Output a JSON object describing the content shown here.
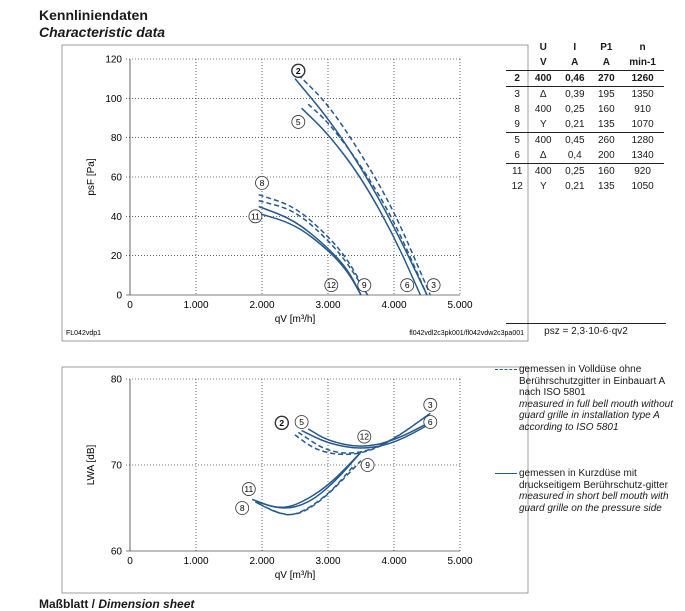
{
  "header": {
    "title": "Kennliniendaten",
    "subtitle": "Characteristic data"
  },
  "footer": {
    "title_de": "Maßblatt",
    "title_sep": " / ",
    "title_en": "Dimension sheet"
  },
  "colors": {
    "curve": "#27598c",
    "grid": "#000000",
    "text": "#1a1a1a"
  },
  "table": {
    "headers": [
      "U",
      "I",
      "P1",
      "n"
    ],
    "units": [
      "V",
      "A",
      "A",
      "min-1"
    ],
    "rows": [
      {
        "id": "2",
        "u": "400",
        "i": "0,46",
        "p": "270",
        "n": "1260",
        "bold": true
      },
      {
        "id": "3",
        "u": "Δ",
        "i": "0,39",
        "p": "195",
        "n": "1350"
      },
      {
        "id": "8",
        "u": "400",
        "i": "0,25",
        "p": "160",
        "n": "910"
      },
      {
        "id": "9",
        "u": "Y",
        "i": "0,21",
        "p": "135",
        "n": "1070"
      },
      {
        "id": "5",
        "u": "400",
        "i": "0,45",
        "p": "260",
        "n": "1280"
      },
      {
        "id": "6",
        "u": "Δ",
        "i": "0,4",
        "p": "200",
        "n": "1340"
      },
      {
        "id": "11",
        "u": "400",
        "i": "0,25",
        "p": "160",
        "n": "920"
      },
      {
        "id": "12",
        "u": "Y",
        "i": "0,21",
        "p": "135",
        "n": "1050"
      }
    ]
  },
  "formula": "psz = 2,3·10-6·qv2",
  "legend": {
    "dashed": {
      "de": "gemessen in Volldüse ohne Berührschutzgitter in Einbauart A nach ISO 5801",
      "en": "measured in full bell mouth without guard grille in installation type A according to ISO 5801"
    },
    "solid": {
      "de": "gemessen in Kurzdüse mit druckseitigem Berührschutz-gitter",
      "en": "measured in short bell mouth with guard grille on the pressure side"
    }
  },
  "chart_data": [
    {
      "type": "line",
      "xlabel": "qV [m³/h]",
      "ylabel": "psF [Pa]",
      "xlim": [
        0,
        5000
      ],
      "ylim": [
        0,
        120
      ],
      "xticks": [
        "0",
        "1.000",
        "2.000",
        "3.000",
        "4.000",
        "5.000"
      ],
      "yticks": [
        "0",
        "20",
        "40",
        "60",
        "80",
        "100",
        "120"
      ],
      "grid": true,
      "note_left": "FL042vdp1",
      "note_right": "fl042vdl2c3pk001/fl042vdw2c3pa001",
      "series": [
        {
          "name": "2",
          "style": "solid",
          "x": [
            2500,
            3000,
            3500,
            4000,
            4500
          ],
          "y": [
            110,
            90,
            65,
            35,
            0
          ]
        },
        {
          "name": "3",
          "style": "dashed",
          "x": [
            2550,
            3000,
            3500,
            4000,
            4550
          ],
          "y": [
            112,
            97,
            72,
            43,
            0
          ]
        },
        {
          "name": "5",
          "style": "solid",
          "x": [
            2600,
            3000,
            3500,
            4000,
            4400
          ],
          "y": [
            95,
            82,
            60,
            30,
            0
          ]
        },
        {
          "name": "6",
          "style": "dashed",
          "x": [
            2700,
            3000,
            3500,
            4000,
            4500
          ],
          "y": [
            97,
            88,
            66,
            38,
            0
          ]
        },
        {
          "name": "8",
          "style": "dashed",
          "x": [
            1950,
            2500,
            3000,
            3300,
            3600
          ],
          "y": [
            51,
            45,
            30,
            18,
            0
          ]
        },
        {
          "name": "9",
          "style": "dashed",
          "x": [
            1950,
            2500,
            3000,
            3300,
            3600
          ],
          "y": [
            48,
            43,
            28,
            16,
            0
          ]
        },
        {
          "name": "11",
          "style": "solid",
          "x": [
            1900,
            2500,
            3000,
            3300,
            3500
          ],
          "y": [
            42,
            36,
            23,
            12,
            0
          ]
        },
        {
          "name": "12",
          "style": "solid",
          "x": [
            1950,
            2500,
            3000,
            3300,
            3500
          ],
          "y": [
            45,
            38,
            24,
            13,
            0
          ]
        }
      ],
      "labels": [
        {
          "id": "2",
          "x": 2550,
          "y": 114
        },
        {
          "id": "5",
          "x": 2550,
          "y": 88
        },
        {
          "id": "8",
          "x": 2000,
          "y": 57
        },
        {
          "id": "11",
          "x": 1900,
          "y": 40
        },
        {
          "id": "12",
          "x": 3050,
          "y": 5
        },
        {
          "id": "9",
          "x": 3550,
          "y": 5
        },
        {
          "id": "6",
          "x": 4200,
          "y": 5
        },
        {
          "id": "3",
          "x": 4600,
          "y": 5
        }
      ]
    },
    {
      "type": "line",
      "xlabel": "qV [m³/h]",
      "ylabel": "LWA [dB]",
      "xlim": [
        0,
        5000
      ],
      "ylim": [
        60,
        80
      ],
      "xticks": [
        "0",
        "1.000",
        "2.000",
        "3.000",
        "4.000",
        "5.000"
      ],
      "yticks": [
        "60",
        "70",
        "80"
      ],
      "grid": true,
      "series": [
        {
          "name": "2",
          "style": "dashed",
          "x": [
            2500,
            2800,
            3200,
            3600,
            4000,
            4550
          ],
          "y": [
            73.5,
            71.8,
            71.1,
            71.5,
            73.0,
            76.0
          ]
        },
        {
          "name": "3",
          "style": "dashed",
          "x": [
            2550,
            3000,
            3500,
            4000,
            4550
          ],
          "y": [
            73.8,
            71.5,
            71.3,
            73.0,
            76.0
          ]
        },
        {
          "name": "5",
          "style": "solid",
          "x": [
            2600,
            3000,
            3500,
            4000,
            4600
          ],
          "y": [
            74.0,
            72.5,
            71.8,
            72.5,
            75.0
          ]
        },
        {
          "name": "6",
          "style": "solid",
          "x": [
            2700,
            3000,
            3500,
            4000,
            4600
          ],
          "y": [
            74.2,
            72.8,
            72.0,
            72.8,
            75.2
          ]
        },
        {
          "name": "8",
          "style": "dashed",
          "x": [
            1900,
            2200,
            2500,
            3000,
            3400
          ],
          "y": [
            65.7,
            64.5,
            64.0,
            66.5,
            70.0
          ]
        },
        {
          "name": "9",
          "style": "dashed",
          "x": [
            1950,
            2300,
            2600,
            3000,
            3500
          ],
          "y": [
            65.5,
            64.2,
            64.3,
            66.5,
            70.5
          ]
        },
        {
          "name": "11",
          "style": "solid",
          "x": [
            1850,
            2200,
            2500,
            3000,
            3500
          ],
          "y": [
            66.0,
            65.0,
            65.2,
            67.5,
            71.5
          ]
        },
        {
          "name": "12",
          "style": "solid",
          "x": [
            1900,
            2300,
            2700,
            3100,
            3500
          ],
          "y": [
            65.8,
            64.8,
            65.5,
            68.0,
            71.5
          ]
        }
      ],
      "labels": [
        {
          "id": "2",
          "x": 2300,
          "y": 74.9
        },
        {
          "id": "5",
          "x": 2600,
          "y": 75.0
        },
        {
          "id": "12",
          "x": 3550,
          "y": 73.3
        },
        {
          "id": "9",
          "x": 3600,
          "y": 70.0
        },
        {
          "id": "3",
          "x": 4550,
          "y": 77.0
        },
        {
          "id": "6",
          "x": 4550,
          "y": 75.0
        },
        {
          "id": "11",
          "x": 1800,
          "y": 67.2
        },
        {
          "id": "8",
          "x": 1700,
          "y": 65.0
        }
      ]
    }
  ]
}
